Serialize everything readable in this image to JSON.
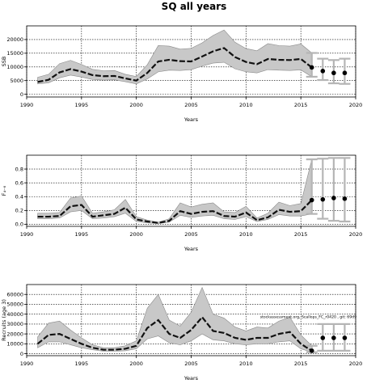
{
  "title": "SQ all years",
  "chart_data": [
    {
      "type": "line",
      "ylabel": "SSB",
      "xlabel": "Years",
      "xlim": [
        1990,
        2020
      ],
      "ylim": [
        -1000,
        25000
      ],
      "xticks": [
        1990,
        1995,
        2000,
        2005,
        2010,
        2015,
        2020
      ],
      "yticks": [
        0,
        5000,
        10000,
        15000,
        20000
      ],
      "grid": true,
      "x": [
        1991,
        1992,
        1993,
        1994,
        1995,
        1996,
        1997,
        1998,
        1999,
        2000,
        2001,
        2002,
        2003,
        2004,
        2005,
        2006,
        2007,
        2008,
        2009,
        2010,
        2011,
        2012,
        2013,
        2014,
        2015,
        2016
      ],
      "estimate": [
        4500,
        5300,
        8000,
        9200,
        8300,
        7000,
        6600,
        6700,
        5800,
        5000,
        7800,
        12000,
        12600,
        12100,
        12000,
        13800,
        15700,
        16900,
        13600,
        11800,
        11000,
        12900,
        12600,
        12500,
        12900,
        9800
      ],
      "lower": [
        3800,
        4200,
        6000,
        7000,
        6300,
        5400,
        5200,
        5300,
        4600,
        3800,
        5600,
        8200,
        8800,
        8700,
        9000,
        10300,
        11400,
        11700,
        9300,
        8200,
        7800,
        9000,
        8800,
        8700,
        8900,
        6400
      ],
      "upper": [
        6200,
        7300,
        11200,
        12400,
        10900,
        9100,
        8600,
        8700,
        7300,
        6500,
        10800,
        17800,
        17600,
        16500,
        16800,
        18800,
        21500,
        23500,
        19000,
        16700,
        15900,
        18500,
        17800,
        17600,
        18400,
        15100
      ],
      "forecast": {
        "x": [
          2016,
          2017,
          2018,
          2019
        ],
        "median": [
          9800,
          8500,
          7800,
          7800
        ],
        "lower": [
          6400,
          5200,
          4000,
          3800
        ],
        "upper": [
          15100,
          13000,
          12500,
          13000
        ]
      }
    },
    {
      "type": "line",
      "ylabel": "F₄₋₆",
      "xlabel": "Years",
      "xlim": [
        1990,
        2020
      ],
      "ylim": [
        -0.03,
        1.0
      ],
      "xticks": [
        1990,
        1995,
        2000,
        2005,
        2010,
        2015,
        2020
      ],
      "yticks": [
        0.0,
        0.2,
        0.4,
        0.6,
        0.8
      ],
      "ytick_labels": [
        "0.0",
        "0.2",
        "0.4",
        "0.6",
        "0.8"
      ],
      "grid": true,
      "x": [
        1991,
        1992,
        1993,
        1994,
        1995,
        1996,
        1997,
        1998,
        1999,
        2000,
        2001,
        2002,
        2003,
        2004,
        2005,
        2006,
        2007,
        2008,
        2009,
        2010,
        2011,
        2012,
        2013,
        2014,
        2015,
        2016
      ],
      "estimate": [
        0.11,
        0.11,
        0.12,
        0.26,
        0.28,
        0.11,
        0.13,
        0.15,
        0.24,
        0.07,
        0.04,
        0.02,
        0.05,
        0.19,
        0.15,
        0.18,
        0.19,
        0.12,
        0.11,
        0.17,
        0.06,
        0.1,
        0.21,
        0.18,
        0.19,
        0.35
      ],
      "lower": [
        0.08,
        0.08,
        0.09,
        0.18,
        0.2,
        0.08,
        0.09,
        0.11,
        0.16,
        0.04,
        0.02,
        0.01,
        0.03,
        0.13,
        0.1,
        0.12,
        0.13,
        0.08,
        0.07,
        0.11,
        0.04,
        0.07,
        0.14,
        0.12,
        0.12,
        0.15
      ],
      "upper": [
        0.16,
        0.16,
        0.17,
        0.38,
        0.41,
        0.16,
        0.18,
        0.21,
        0.36,
        0.11,
        0.06,
        0.03,
        0.08,
        0.31,
        0.25,
        0.29,
        0.31,
        0.18,
        0.17,
        0.26,
        0.09,
        0.16,
        0.32,
        0.27,
        0.3,
        0.94
      ],
      "forecast": {
        "x": [
          2016,
          2017,
          2018,
          2019
        ],
        "median": [
          0.35,
          0.36,
          0.38,
          0.37
        ],
        "lower": [
          0.15,
          0.08,
          0.05,
          0.04
        ],
        "upper": [
          0.94,
          0.95,
          0.96,
          0.96
        ]
      }
    },
    {
      "type": "line",
      "ylabel": "Recruits (age 3)",
      "xlabel": "Years",
      "xlim": [
        1990,
        2020
      ],
      "ylim": [
        -2000,
        70000
      ],
      "xticks": [
        1990,
        1995,
        2000,
        2005,
        2010,
        2015,
        2020
      ],
      "yticks": [
        0,
        10000,
        20000,
        30000,
        40000,
        50000,
        60000
      ],
      "grid": true,
      "x": [
        1991,
        1992,
        1993,
        1994,
        1995,
        1996,
        1997,
        1998,
        1999,
        2000,
        2001,
        2002,
        2003,
        2004,
        2005,
        2006,
        2007,
        2008,
        2009,
        2010,
        2011,
        2012,
        2013,
        2014,
        2015,
        2016
      ],
      "estimate": [
        10000,
        19000,
        20000,
        15000,
        10000,
        6000,
        4000,
        4000,
        5000,
        8000,
        26000,
        34000,
        20000,
        16000,
        24000,
        37000,
        23000,
        21000,
        16000,
        14000,
        16000,
        16000,
        20000,
        22000,
        10000,
        3000
      ],
      "lower": [
        6000,
        12000,
        12000,
        9000,
        6000,
        4000,
        2500,
        2500,
        3000,
        5000,
        15000,
        18000,
        11000,
        9000,
        13000,
        20000,
        14000,
        13000,
        10000,
        9000,
        10000,
        10000,
        12000,
        13000,
        5000,
        1500
      ],
      "upper": [
        17000,
        31000,
        33000,
        24000,
        16000,
        9000,
        6000,
        6000,
        8000,
        13000,
        46000,
        60000,
        34000,
        28000,
        42000,
        67000,
        40000,
        36000,
        27000,
        23000,
        27000,
        26000,
        33000,
        37000,
        19000,
        8000
      ],
      "forecast": {
        "x": [
          2016,
          2017,
          2018,
          2019
        ],
        "median": [
          3000,
          16000,
          16000,
          16000
        ],
        "lower": [
          1500,
          3000,
          3000,
          3000
        ],
        "upper": [
          8000,
          30000,
          30000,
          30000
        ]
      },
      "annotation": "stockassessment.org, Scallops_FC_r0420 , git: 69d9"
    }
  ]
}
